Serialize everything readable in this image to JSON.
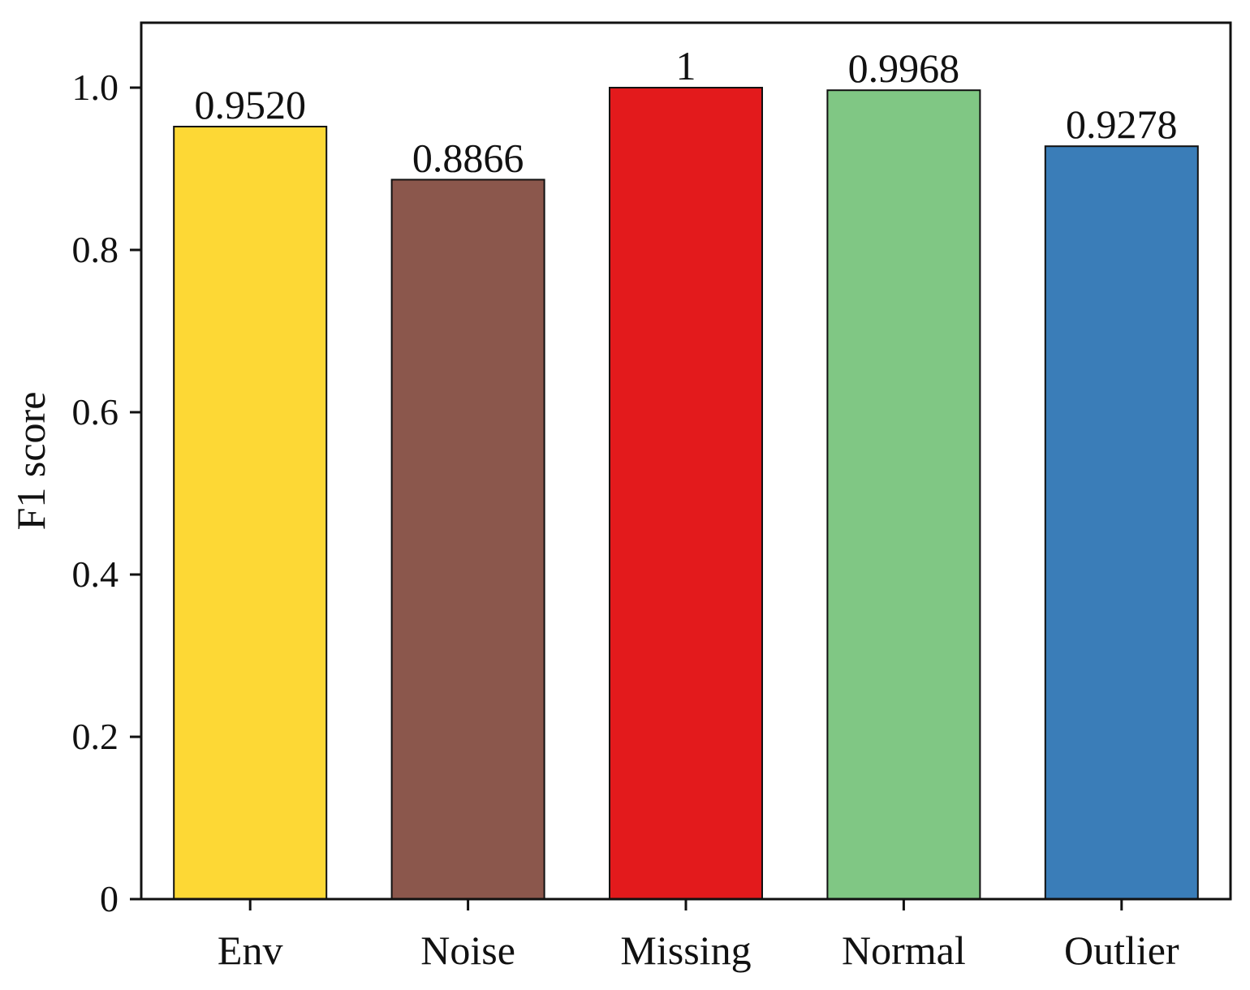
{
  "chart_data": {
    "type": "bar",
    "title": "",
    "xlabel": "",
    "ylabel": "F1 score",
    "ylim": [
      0,
      1.08
    ],
    "yticks": [
      0,
      0.2,
      0.4,
      0.6,
      0.8,
      1.0
    ],
    "ytick_labels": [
      "0",
      "0.2",
      "0.4",
      "0.6",
      "0.8",
      "1.0"
    ],
    "grid": false,
    "legend": "none",
    "categories": [
      "Env",
      "Noise",
      "Missing",
      "Normal",
      "Outlier"
    ],
    "values": [
      0.952,
      0.8866,
      1.0,
      0.9968,
      0.9278
    ],
    "value_labels": [
      "0.9520",
      "0.8866",
      "1",
      "0.9968",
      "0.9278"
    ],
    "colors": [
      "#fdd835",
      "#8b574c",
      "#e31a1c",
      "#80c784",
      "#3a7db8"
    ]
  }
}
